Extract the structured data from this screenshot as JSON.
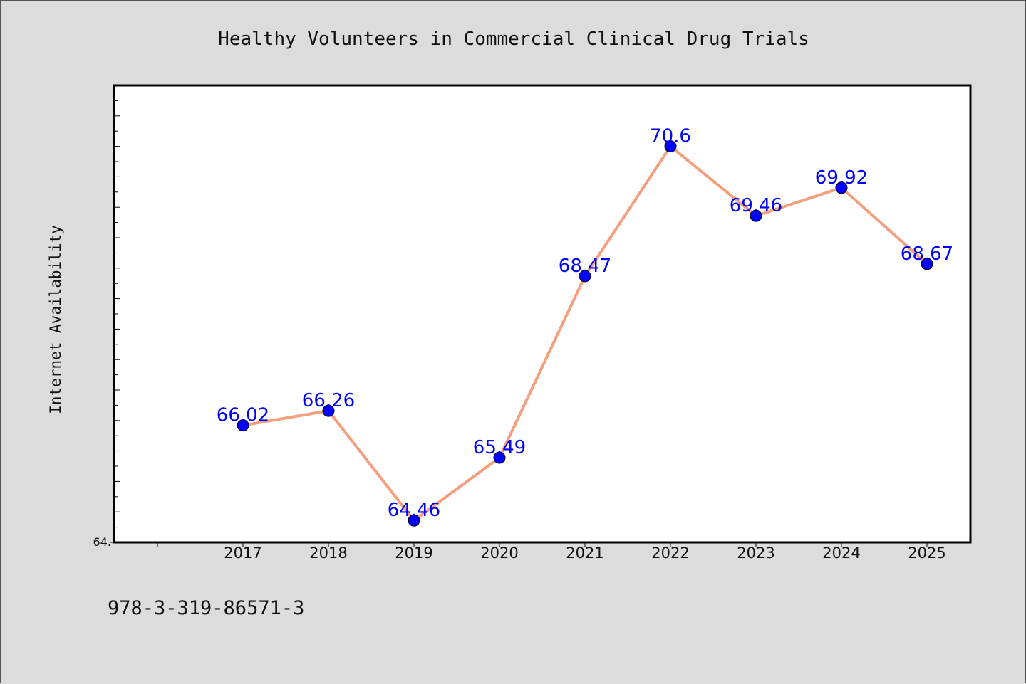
{
  "chart_data": {
    "type": "line",
    "title": "Healthy Volunteers in Commercial Clinical Drug Trials",
    "ylabel": "Internet Availability",
    "xlabel": "",
    "categories": [
      "2017",
      "2018",
      "2019",
      "2020",
      "2021",
      "2022",
      "2023",
      "2024",
      "2025"
    ],
    "series": [
      {
        "values": [
          66.02,
          66.26,
          64.46,
          65.49,
          68.47,
          70.6,
          69.46,
          69.92,
          68.67
        ],
        "labels": [
          "66.02",
          "66.26",
          "64.46",
          "65.49",
          "68.47",
          "70.6",
          "69.46",
          "69.92",
          "68.67"
        ]
      }
    ],
    "ylim": [
      64.1,
      71.6
    ],
    "ytick_label": "64.",
    "grid": false,
    "line_color": "#f4a07e",
    "marker_color": "#0000ff",
    "label_color": "#0000ff"
  },
  "footer_text": "978-3-319-86571-3"
}
